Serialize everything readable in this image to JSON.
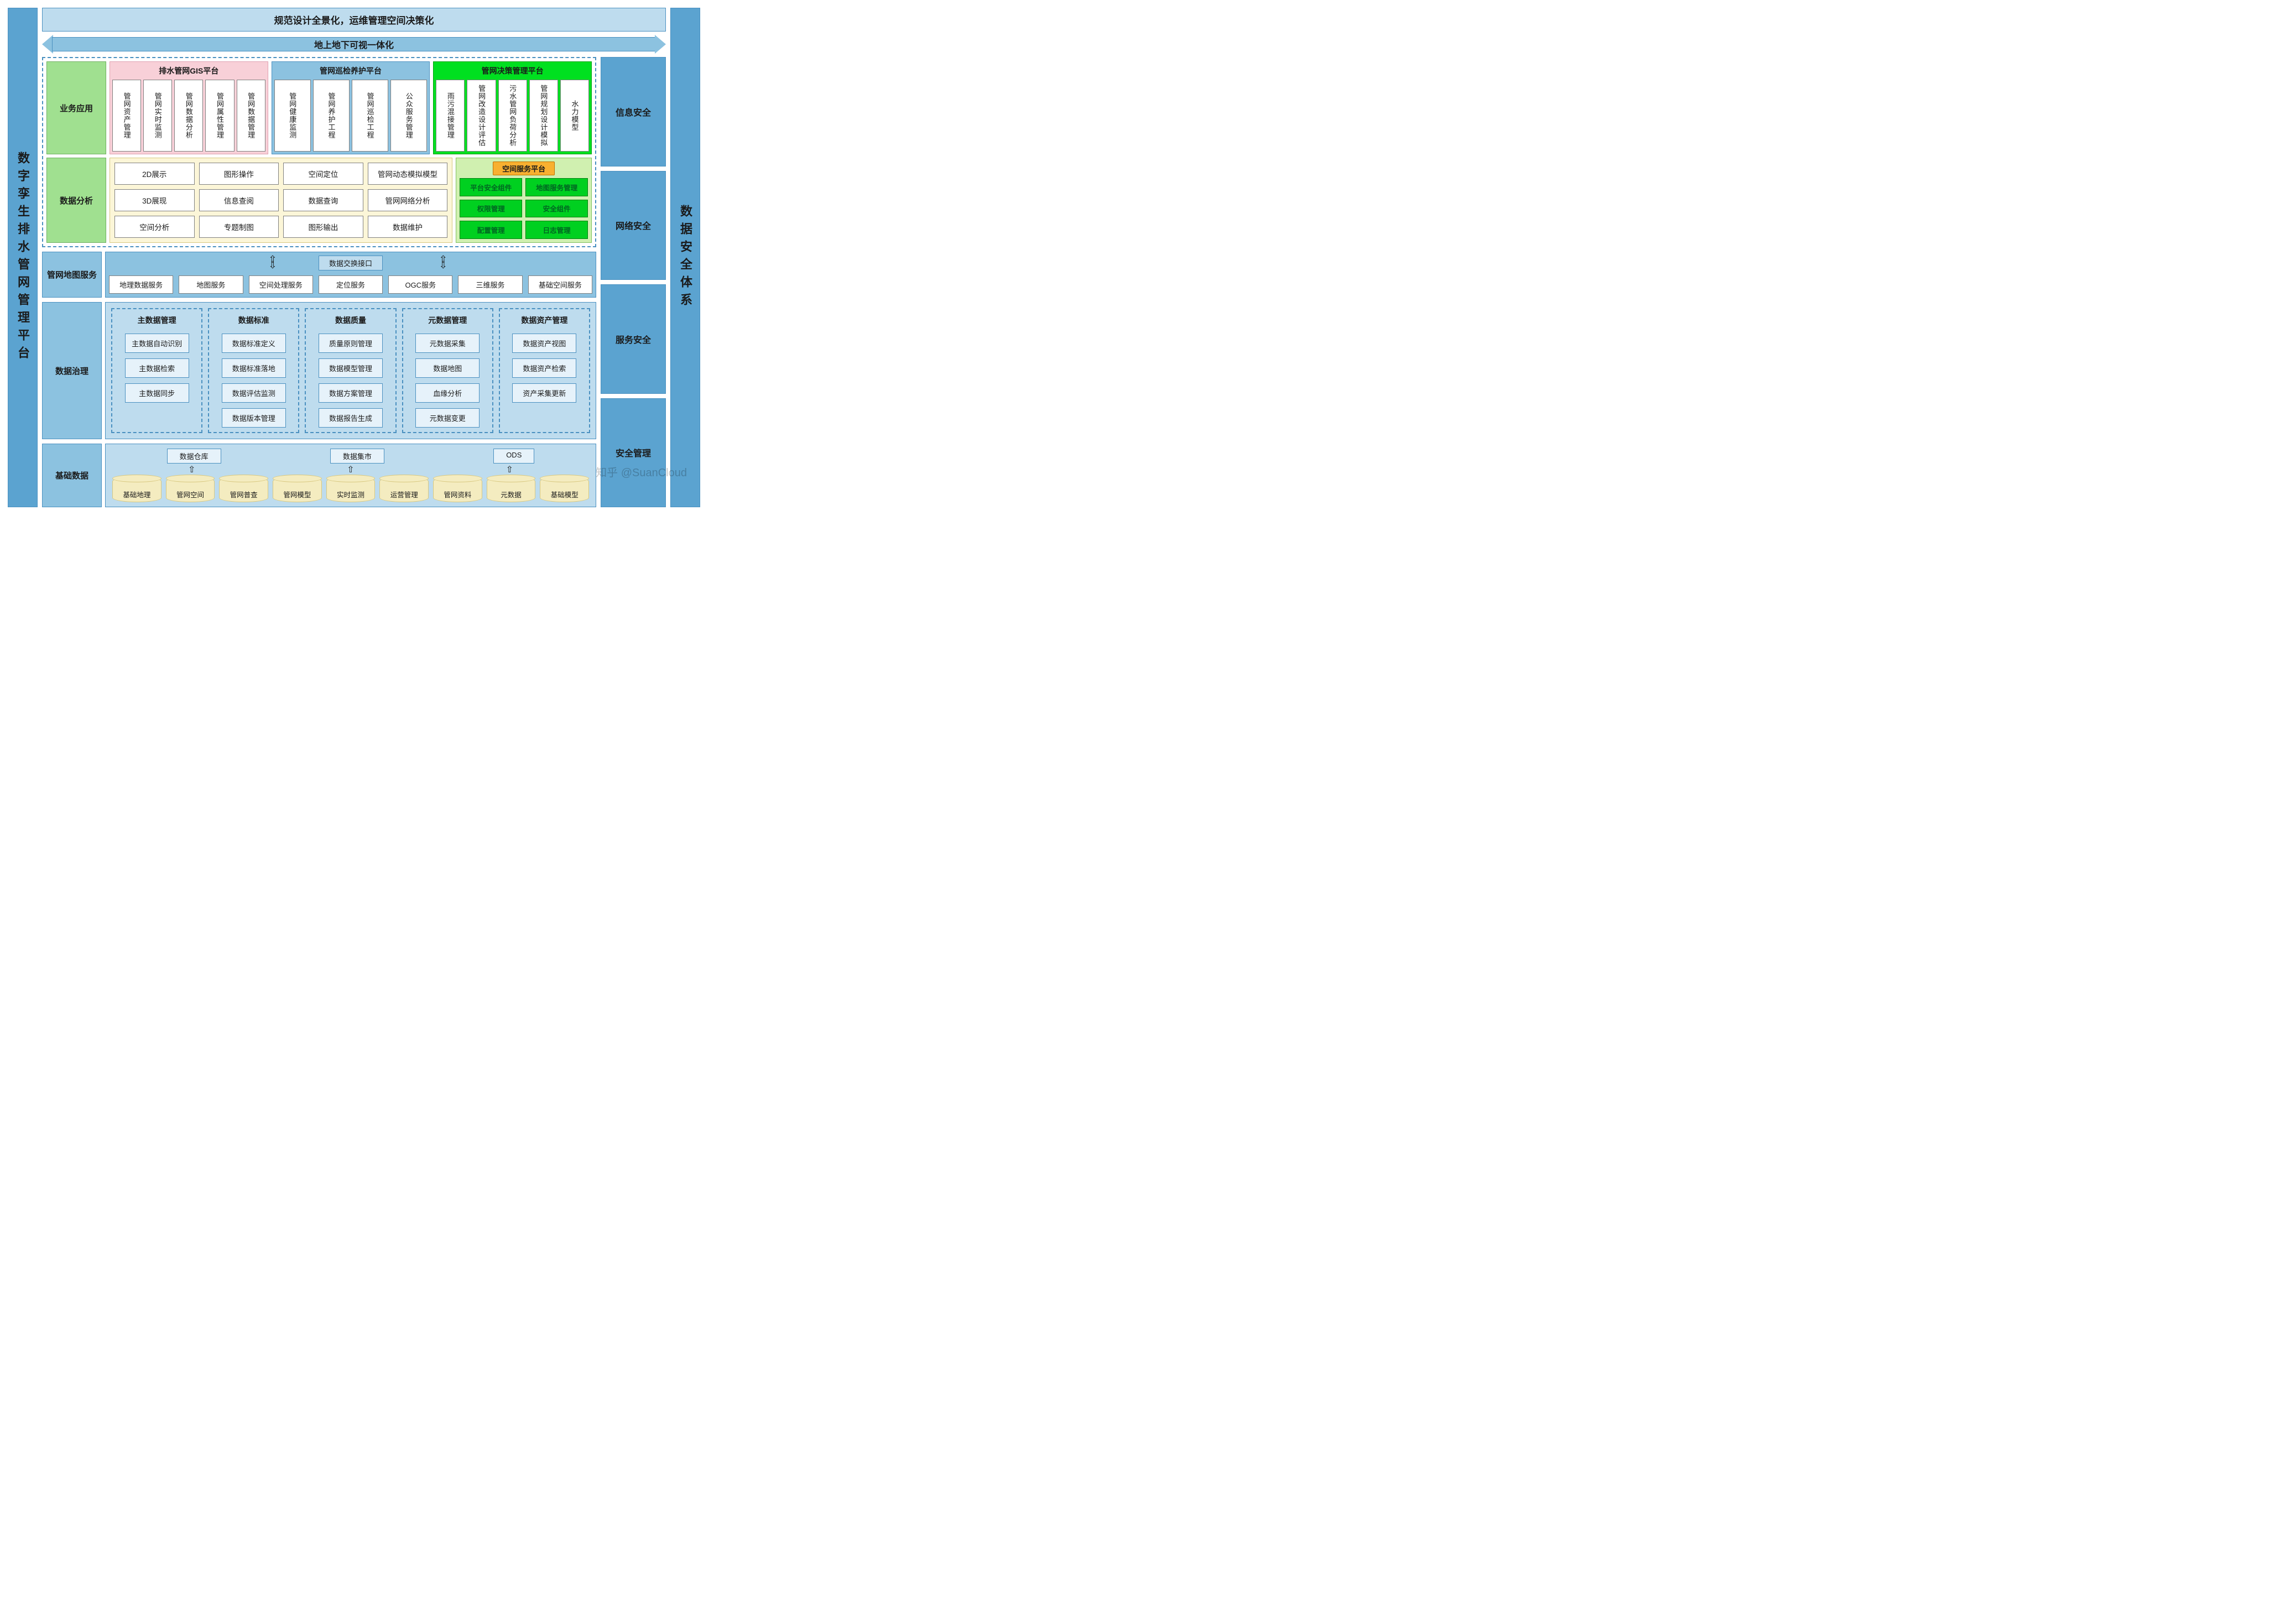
{
  "pillar_left": "数字孪生排水管网管理平台",
  "pillar_right": "数据安全体系",
  "top_banner": "规范设计全景化，运维管理空间决策化",
  "arrow_label": "地上地下可视一体化",
  "right_blocks": [
    "信息安全",
    "网络安全",
    "服务安全",
    "安全管理"
  ],
  "lane_biz": "业务应用",
  "plat1_title": "排水管网GIS平台",
  "plat1_items": [
    "管网资产管理",
    "管网实时监测",
    "管网数据分析",
    "管网属性管理",
    "管网数据管理"
  ],
  "plat2_title": "管网巡检养护平台",
  "plat2_items": [
    "管网健康监测",
    "管网养护工程",
    "管网巡检工程",
    "公众服务管理"
  ],
  "plat3_title": "管网决策管理平台",
  "plat3_items": [
    "雨污混接管理",
    "管网改造设计评估",
    "污水管网负荷分析",
    "管网规划设计模拟",
    "水力模型"
  ],
  "lane_ana": "数据分析",
  "ana_cells": [
    "2D展示",
    "图形操作",
    "空间定位",
    "管网动态模拟模型",
    "3D展现",
    "信息查阅",
    "数据查询",
    "管网网络分析",
    "空间分析",
    "专题制图",
    "图形输出",
    "数据维护"
  ],
  "svc_title": "空间服务平台",
  "svc_cells": [
    "平台安全组件",
    "地图服务管理",
    "权限管理",
    "安全组件",
    "配置管理",
    "日志管理"
  ],
  "lane_map": "管网地图服务",
  "map_title": "数据交换接口",
  "map_cells": [
    "地理数据服务",
    "地图服务",
    "空间处理服务",
    "定位服务",
    "OGC服务",
    "三维服务",
    "基础空间服务"
  ],
  "lane_gov": "数据治理",
  "gov": [
    {
      "title": "主数据管理",
      "items": [
        "主数据自动识别",
        "主数据检索",
        "主数据同步"
      ]
    },
    {
      "title": "数据标准",
      "items": [
        "数据标准定义",
        "数据标准落地",
        "数据评估监测",
        "数据版本管理"
      ]
    },
    {
      "title": "数据质量",
      "items": [
        "质量原则管理",
        "数据模型管理",
        "数据方案管理",
        "数据报告生成"
      ]
    },
    {
      "title": "元数据管理",
      "items": [
        "元数据采集",
        "数据地图",
        "血缘分析",
        "元数据变更"
      ]
    },
    {
      "title": "数据资产管理",
      "items": [
        "数据资产视图",
        "数据资产检索",
        "资产采集更新"
      ]
    }
  ],
  "lane_base": "基础数据",
  "base_top": [
    "数据仓库",
    "数据集市",
    "ODS"
  ],
  "base_cyl": [
    "基础地理",
    "管网空间",
    "管网普查",
    "管网模型",
    "实时监测",
    "运营管理",
    "管网资料",
    "元数据",
    "基础模型"
  ],
  "watermark": "知乎 @SuanCloud"
}
